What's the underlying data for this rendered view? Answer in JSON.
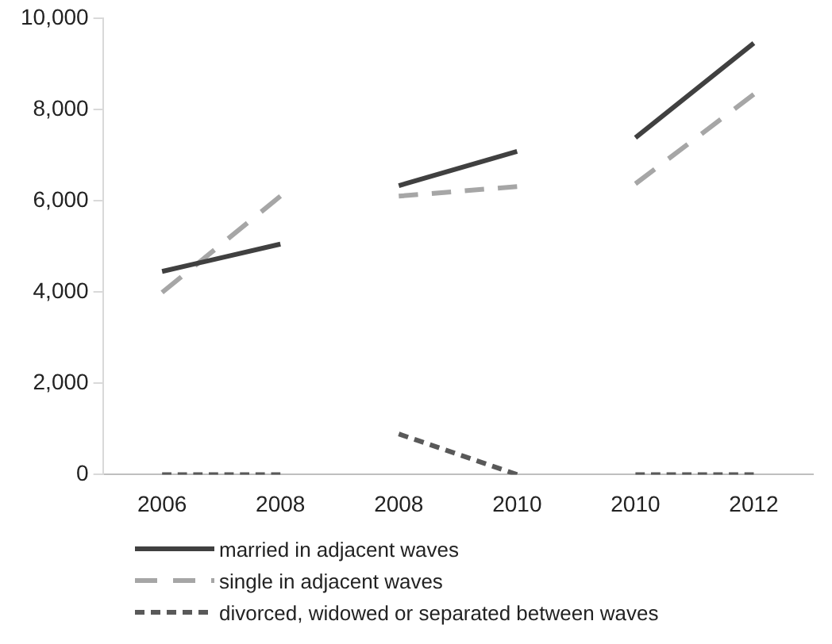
{
  "chart_data": {
    "type": "line",
    "categories": [
      "2006",
      "2008",
      "2008",
      "2010",
      "2010",
      "2012"
    ],
    "ylim": [
      0,
      10000
    ],
    "yticks": [
      {
        "value": 0,
        "label": "0"
      },
      {
        "value": 2000,
        "label": "2,000"
      },
      {
        "value": 4000,
        "label": "4,000"
      },
      {
        "value": 6000,
        "label": "6,000"
      },
      {
        "value": 8000,
        "label": "8,000"
      },
      {
        "value": 10000,
        "label": "10,000"
      }
    ],
    "grid": false,
    "legend": "bottom",
    "marker": "none",
    "series": [
      {
        "name": "married in adjacent waves",
        "color": "#404040",
        "line_style": "solid",
        "values": [
          4450,
          5050,
          null,
          null,
          null,
          null
        ]
      },
      {
        "name": "single in adjacent waves",
        "color": "#a6a6a6",
        "line_style": "dashed",
        "values": [
          3990,
          6100,
          null,
          null,
          null,
          null
        ]
      },
      {
        "name": "divorced, widowed or separated between waves",
        "color": "#595959",
        "line_style": "dotted",
        "values": [
          0,
          0,
          null,
          null,
          null,
          null
        ]
      },
      {
        "color": "#404040",
        "line_style": "solid",
        "values": [
          null,
          null,
          6330,
          7080,
          null,
          null
        ]
      },
      {
        "color": "#a6a6a6",
        "line_style": "dashed",
        "values": [
          null,
          null,
          6100,
          6310,
          null,
          null
        ]
      },
      {
        "color": "#595959",
        "line_style": "dotted",
        "values": [
          null,
          null,
          890,
          0,
          null,
          null
        ]
      },
      {
        "color": "#404040",
        "line_style": "solid",
        "values": [
          null,
          null,
          null,
          null,
          7380,
          9450
        ]
      },
      {
        "color": "#a6a6a6",
        "line_style": "dashed",
        "values": [
          null,
          null,
          null,
          null,
          6370,
          8330
        ]
      },
      {
        "color": "#595959",
        "line_style": "dotted",
        "values": [
          null,
          null,
          null,
          null,
          0,
          0
        ]
      }
    ]
  }
}
